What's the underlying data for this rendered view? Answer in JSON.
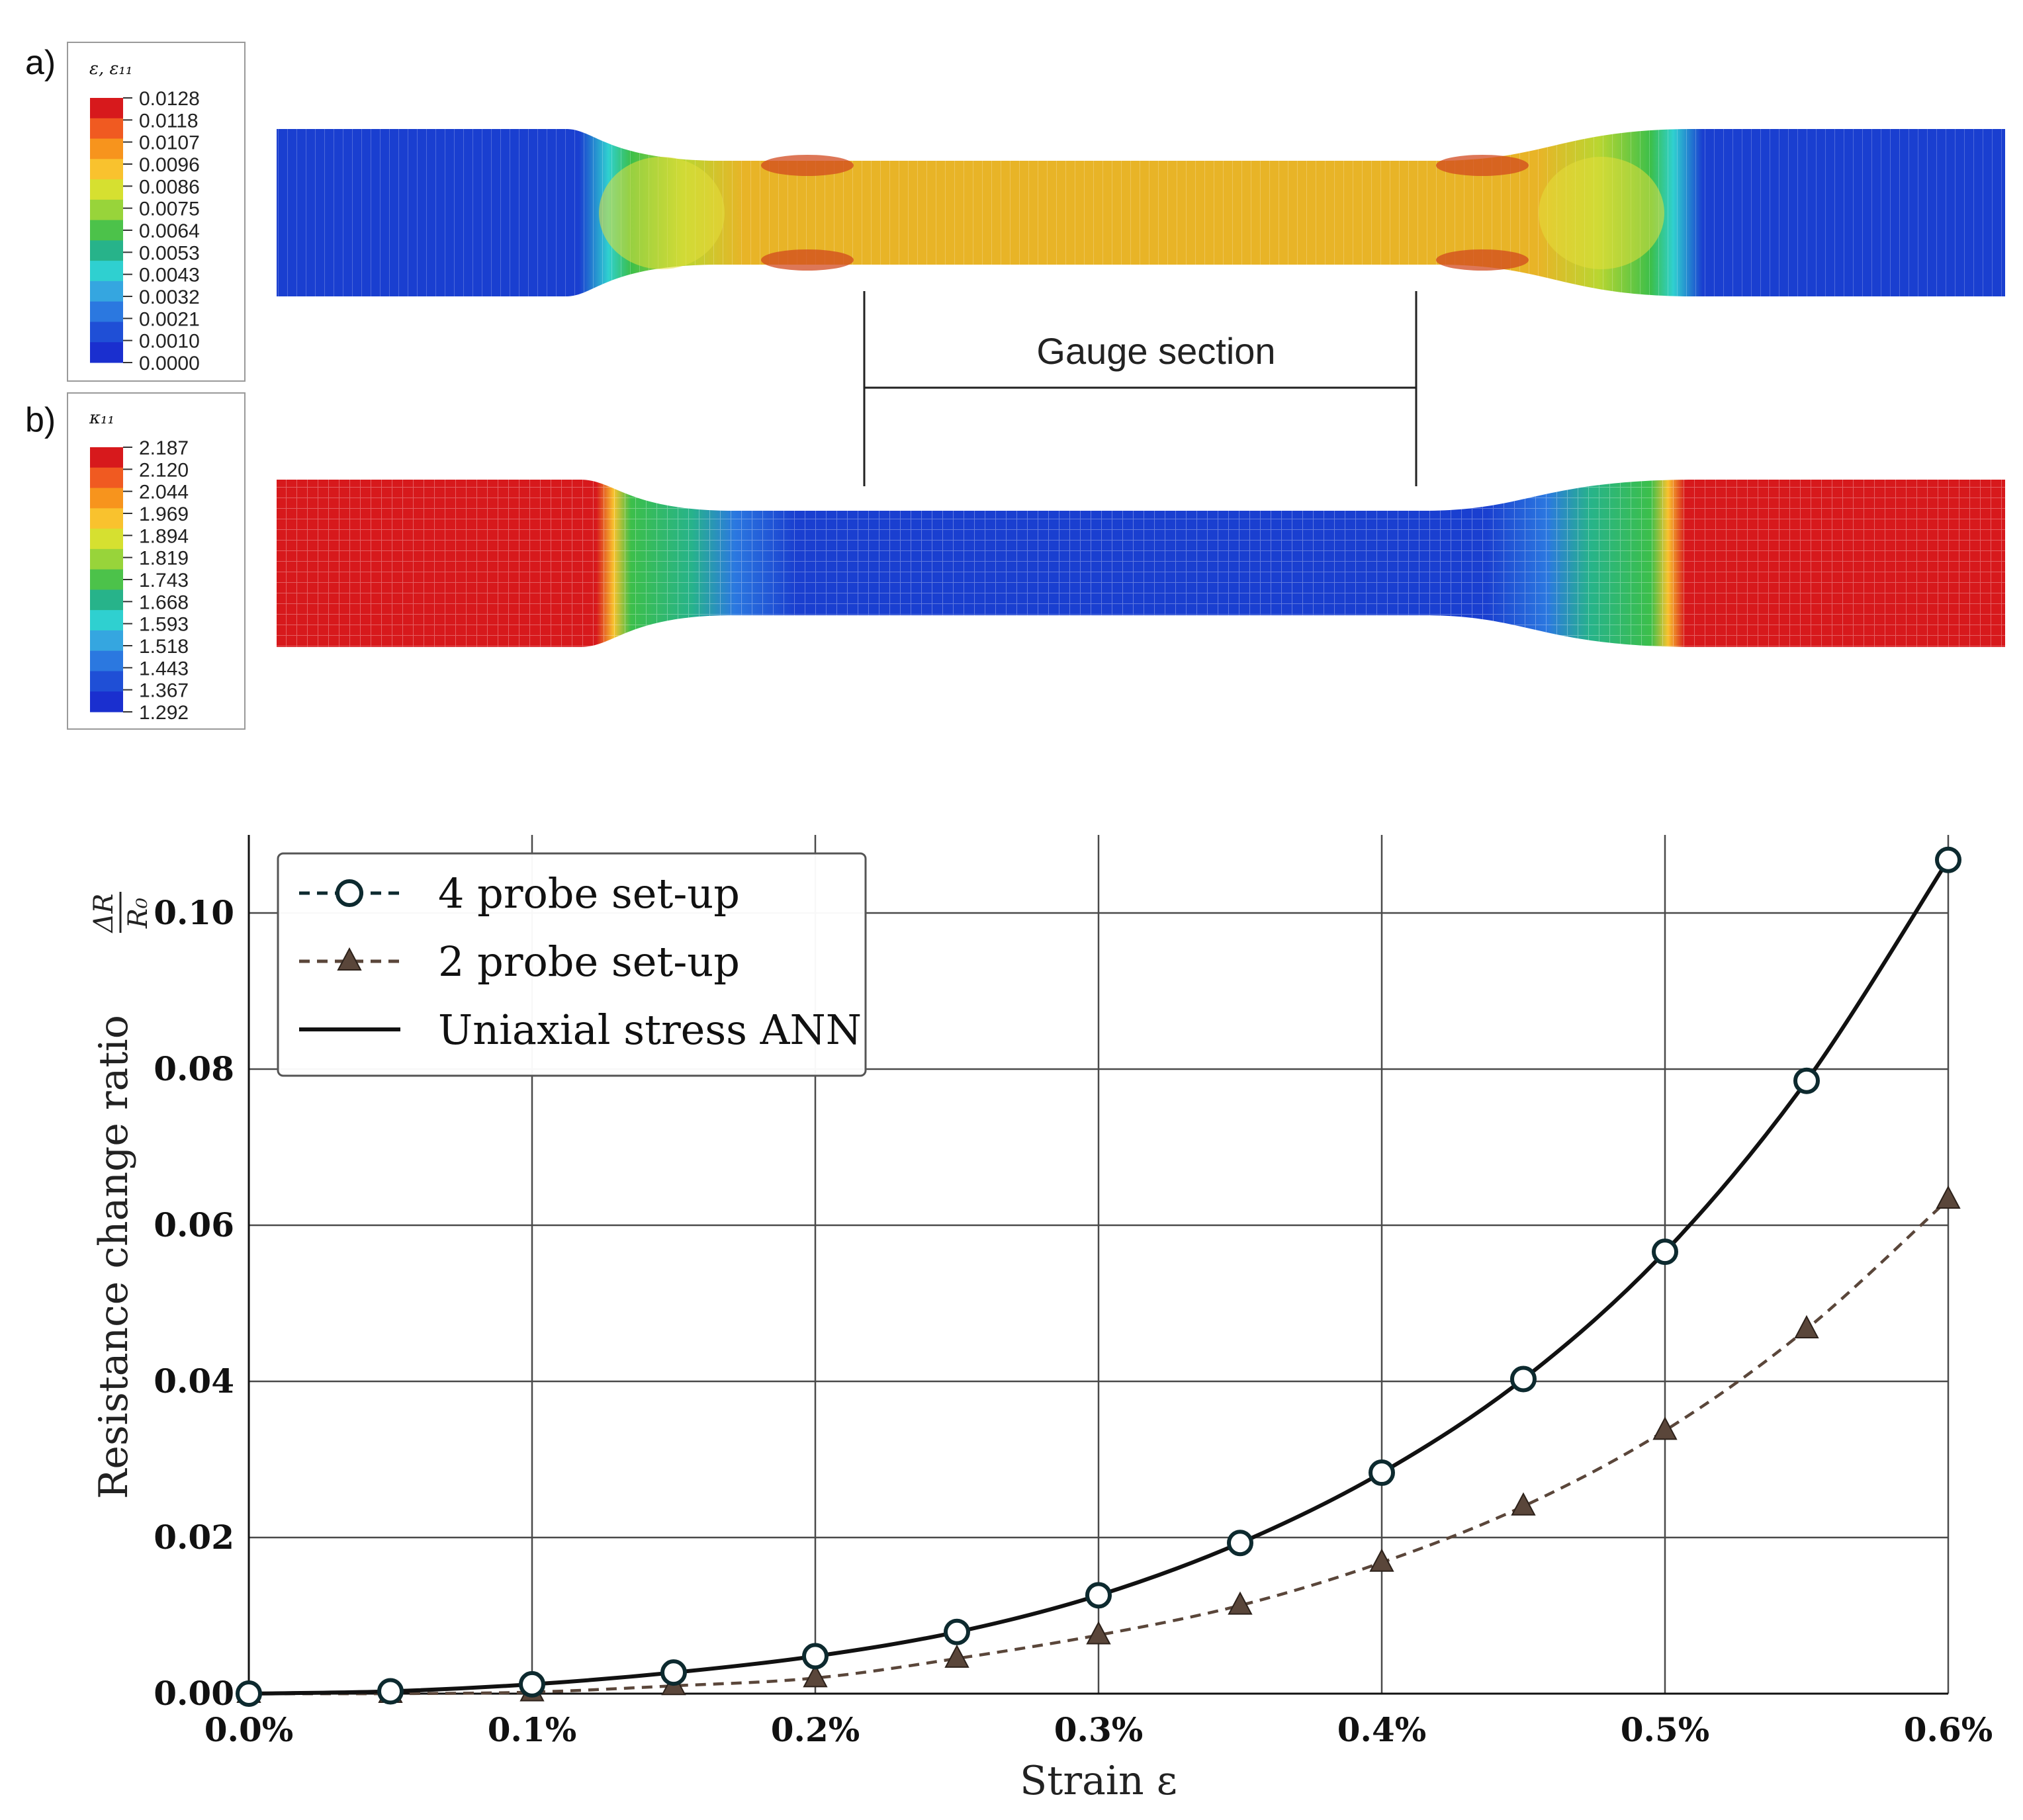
{
  "panel_a": {
    "label": "a)",
    "legend_title": "ε, ε₁₁",
    "legend_values": [
      "0.0128",
      "0.0118",
      "0.0107",
      "0.0096",
      "0.0086",
      "0.0075",
      "0.0064",
      "0.0053",
      "0.0043",
      "0.0032",
      "0.0021",
      "0.0010",
      "0.0000"
    ],
    "colors": [
      "#d7191c",
      "#f05a21",
      "#f7941d",
      "#f9c22e",
      "#d6e030",
      "#98d43a",
      "#4cc24a",
      "#27b38a",
      "#2fd0d0",
      "#35a6e0",
      "#2b78e0",
      "#1f4fd6",
      "#1a2fcf"
    ]
  },
  "panel_b": {
    "label": "b)",
    "legend_title": "κ₁₁",
    "legend_values": [
      "2.187",
      "2.120",
      "2.044",
      "1.969",
      "1.894",
      "1.819",
      "1.743",
      "1.668",
      "1.593",
      "1.518",
      "1.443",
      "1.367",
      "1.292"
    ],
    "colors": [
      "#d7191c",
      "#f05a21",
      "#f7941d",
      "#f9c22e",
      "#d6e030",
      "#98d43a",
      "#4cc24a",
      "#27b38a",
      "#2fd0d0",
      "#35a6e0",
      "#2b78e0",
      "#1f4fd6",
      "#1a2fcf"
    ]
  },
  "gauge_label": "Gauge section",
  "chart_data": {
    "type": "line",
    "xlabel": "Strain ε",
    "ylabel": "Resistance change ratio",
    "ylabel_fraction": {
      "numerator": "ΔR",
      "denominator": "R₀"
    },
    "xlim": [
      0,
      0.6
    ],
    "ylim": [
      0,
      0.11
    ],
    "x_ticks": [
      0,
      0.1,
      0.2,
      0.3,
      0.4,
      0.5,
      0.6
    ],
    "x_tick_labels": [
      "0.0%",
      "0.1%",
      "0.2%",
      "0.3%",
      "0.4%",
      "0.5%",
      "0.6%"
    ],
    "y_ticks": [
      0,
      0.02,
      0.04,
      0.06,
      0.08,
      0.1
    ],
    "y_tick_labels": [
      "0.00",
      "0.02",
      "0.04",
      "0.06",
      "0.08",
      "0.10"
    ],
    "grid": true,
    "legend_position": "top-left",
    "series": [
      {
        "name": "4 probe set-up",
        "marker": "circle",
        "line": "dashed",
        "color": "#0d2a2f",
        "x": [
          0,
          0.05,
          0.1,
          0.15,
          0.2,
          0.25,
          0.3,
          0.35,
          0.4,
          0.45,
          0.5,
          0.55,
          0.6
        ],
        "y": [
          0.0,
          0.0003,
          0.0012,
          0.0027,
          0.0048,
          0.0079,
          0.0126,
          0.0193,
          0.0283,
          0.0403,
          0.0566,
          0.0785,
          0.1068
        ]
      },
      {
        "name": "2 probe set-up",
        "marker": "triangle",
        "line": "dashed",
        "color": "#5a463a",
        "x": [
          0,
          0.05,
          0.1,
          0.15,
          0.2,
          0.25,
          0.3,
          0.35,
          0.4,
          0.45,
          0.5,
          0.55,
          0.6
        ],
        "y": [
          0.0,
          0.0,
          0.0002,
          0.001,
          0.002,
          0.0045,
          0.0075,
          0.0113,
          0.0168,
          0.024,
          0.0337,
          0.0467,
          0.0633
        ]
      },
      {
        "name": "Uniaxial stress ANN",
        "marker": "none",
        "line": "solid",
        "color": "#111111",
        "x": [
          0,
          0.05,
          0.1,
          0.15,
          0.2,
          0.25,
          0.3,
          0.35,
          0.4,
          0.45,
          0.5,
          0.55,
          0.6
        ],
        "y": [
          0.0,
          0.0003,
          0.0012,
          0.0027,
          0.0048,
          0.0079,
          0.0126,
          0.0193,
          0.0283,
          0.0403,
          0.0566,
          0.0785,
          0.1068
        ]
      }
    ]
  }
}
